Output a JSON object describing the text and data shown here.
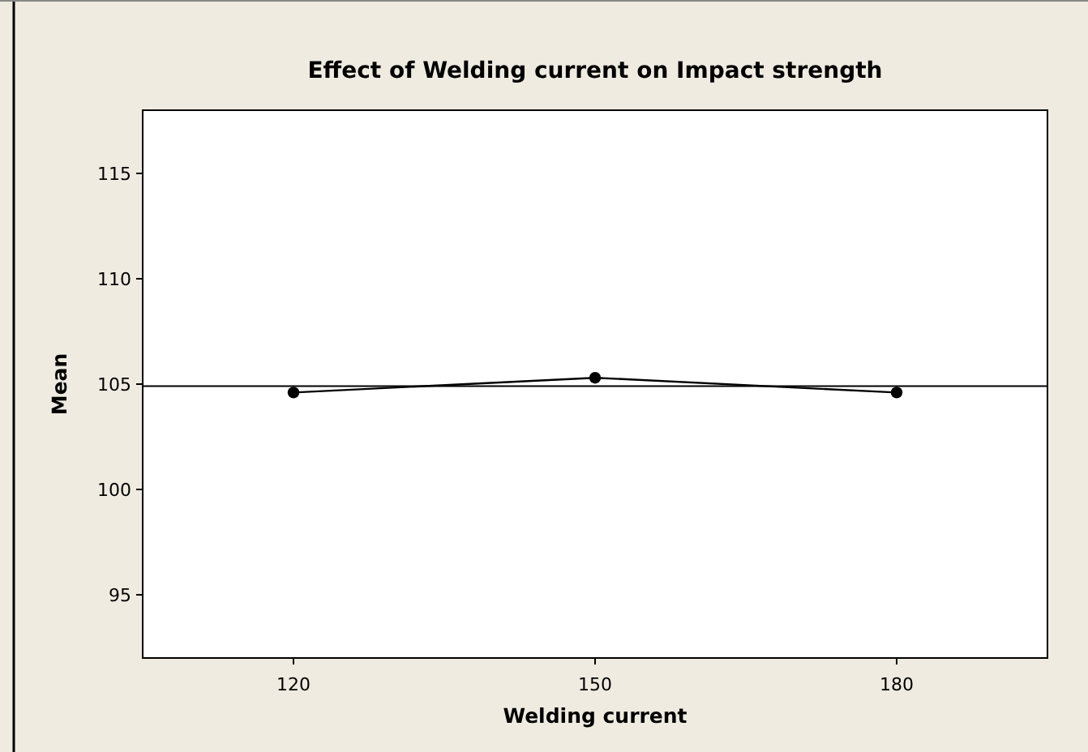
{
  "chart_data": {
    "type": "line",
    "title": "Effect of Welding current on Impact strength",
    "xlabel": "Welding current",
    "ylabel": "Mean",
    "x": [
      120,
      150,
      180
    ],
    "series": [
      {
        "color": "#000000",
        "values": [
          104.6,
          105.3,
          104.6
        ]
      }
    ],
    "marker": "circle",
    "line_style": "solid",
    "xlim": [
      105,
      195
    ],
    "xticks": [
      120,
      150,
      180
    ],
    "ylim": [
      92,
      118
    ],
    "yticks": [
      95,
      100,
      105,
      110,
      115
    ],
    "ref_lines": [
      {
        "axis": "y",
        "value": 104.9,
        "color": "#000000"
      }
    ],
    "grid": false
  }
}
